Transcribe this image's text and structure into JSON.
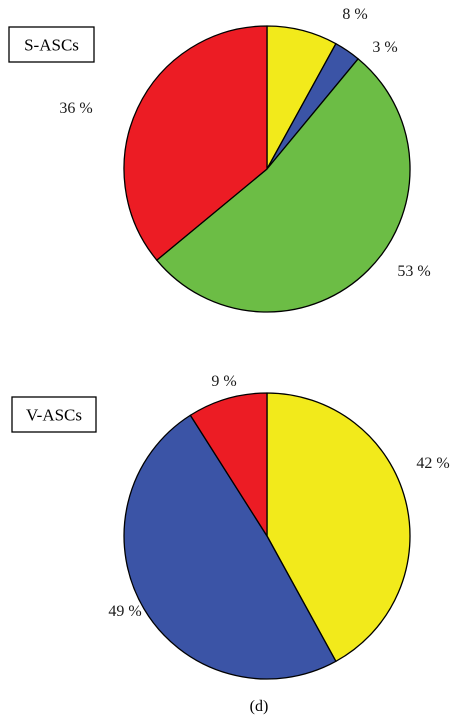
{
  "figure": {
    "caption": "(d)"
  },
  "chart_data": [
    {
      "type": "pie",
      "title": "S-ASCs",
      "slices": [
        {
          "label": "8 %",
          "value": 8,
          "color": "#f2ea1b"
        },
        {
          "label": "3 %",
          "value": 3,
          "color": "#3b54a6"
        },
        {
          "label": "53 %",
          "value": 53,
          "color": "#6cbd45"
        },
        {
          "label": "36 %",
          "value": 36,
          "color": "#ec1c24"
        }
      ],
      "start": "12 o'clock",
      "direction": "clockwise"
    },
    {
      "type": "pie",
      "title": "V-ASCs",
      "slices": [
        {
          "label": "42 %",
          "value": 42,
          "color": "#f2ea1b"
        },
        {
          "label": "49 %",
          "value": 49,
          "color": "#3b54a6"
        },
        {
          "label": "9 %",
          "value": 9,
          "color": "#ec1c24"
        }
      ],
      "start": "12 o'clock",
      "direction": "clockwise"
    }
  ]
}
